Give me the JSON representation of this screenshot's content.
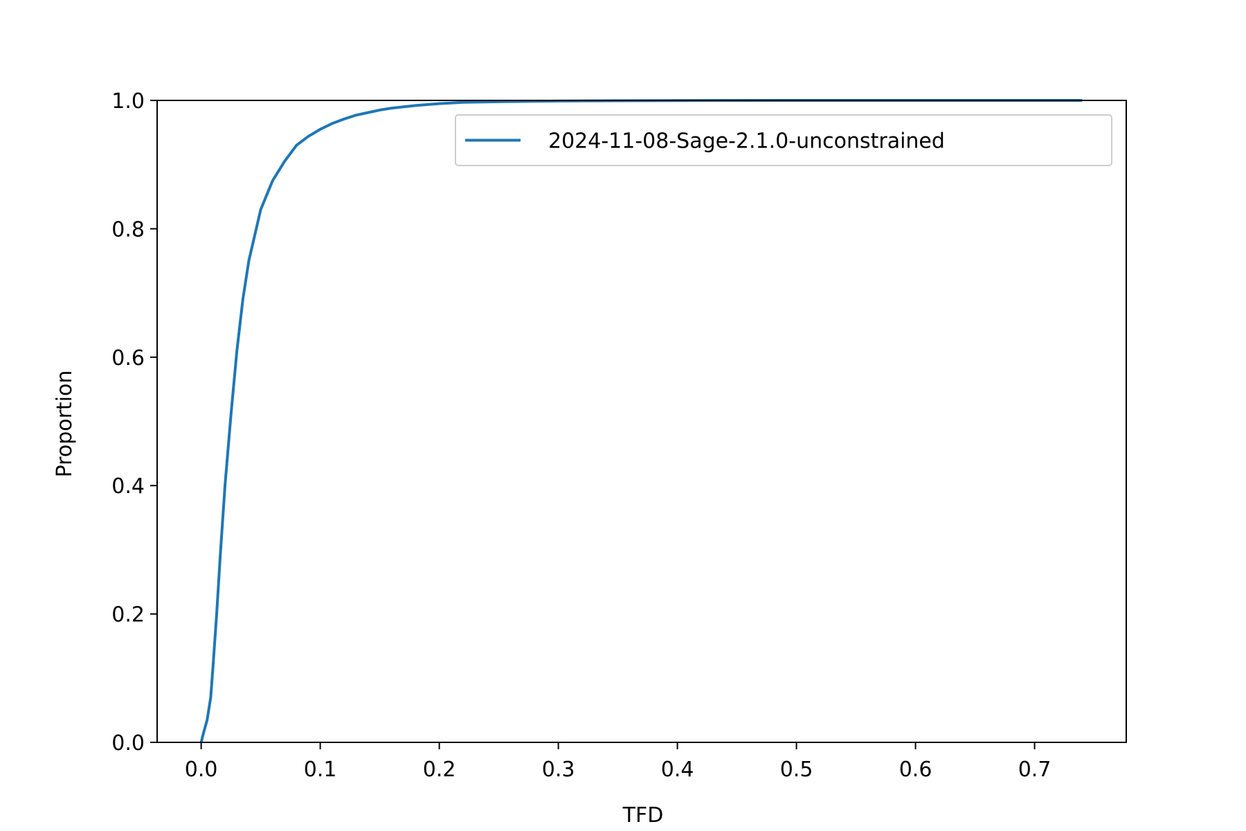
{
  "chart_data": {
    "type": "line",
    "title": "",
    "xlabel": "TFD",
    "ylabel": "Proportion",
    "xlim": [
      -0.037,
      0.777
    ],
    "ylim": [
      0.0,
      1.0
    ],
    "x_ticks": [
      "0.0",
      "0.1",
      "0.2",
      "0.3",
      "0.4",
      "0.5",
      "0.6",
      "0.7"
    ],
    "x_tick_values": [
      0.0,
      0.1,
      0.2,
      0.3,
      0.4,
      0.5,
      0.6,
      0.7
    ],
    "y_ticks": [
      "0.0",
      "0.2",
      "0.4",
      "0.6",
      "0.8",
      "1.0"
    ],
    "y_tick_values": [
      0.0,
      0.2,
      0.4,
      0.6,
      0.8,
      1.0
    ],
    "grid": false,
    "legend_position": "upper right",
    "series": [
      {
        "name": "2024-11-08-Sage-2.1.0-unconstrained",
        "color": "#1f77b4",
        "x": [
          0.0,
          0.002,
          0.005,
          0.008,
          0.01,
          0.013,
          0.016,
          0.02,
          0.025,
          0.03,
          0.035,
          0.04,
          0.045,
          0.05,
          0.06,
          0.07,
          0.08,
          0.09,
          0.1,
          0.11,
          0.12,
          0.13,
          0.14,
          0.15,
          0.16,
          0.18,
          0.2,
          0.22,
          0.25,
          0.3,
          0.35,
          0.4,
          0.5,
          0.6,
          0.7,
          0.74
        ],
        "y": [
          0.0,
          0.015,
          0.035,
          0.07,
          0.12,
          0.2,
          0.29,
          0.4,
          0.51,
          0.61,
          0.69,
          0.75,
          0.79,
          0.83,
          0.875,
          0.905,
          0.93,
          0.944,
          0.955,
          0.964,
          0.971,
          0.977,
          0.981,
          0.985,
          0.988,
          0.992,
          0.995,
          0.997,
          0.998,
          0.999,
          0.9995,
          0.9998,
          1.0,
          1.0,
          1.0,
          1.0
        ]
      }
    ]
  }
}
